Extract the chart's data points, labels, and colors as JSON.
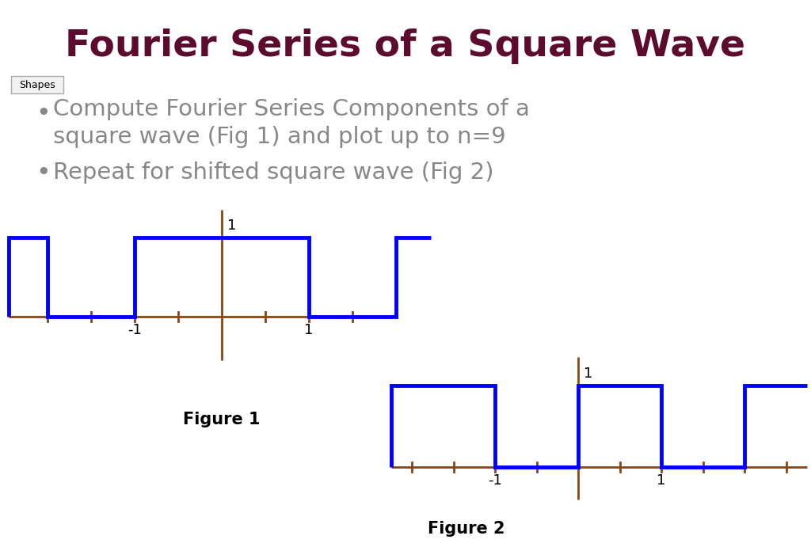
{
  "title": "Fourier Series of a Square Wave",
  "title_color": "#5C0A2E",
  "title_fontsize": 34,
  "bg_color": "#FFFFFF",
  "bullet1_line1": "Compute Fourier Series Components of a",
  "bullet1_line2": "square wave (Fig 1) and plot up to n=9",
  "bullet2": "Repeat for shifted square wave (Fig 2)",
  "bullet_color": "#888888",
  "bullet_fontsize": 21,
  "shapes_label": "Shapes",
  "axis_color": "#8B4513",
  "wave_color": "#0000FF",
  "wave_lw": 3.5,
  "axis_lw": 2.0,
  "fig1_label": "Figure 1",
  "fig2_label": "Figure 2",
  "label_fontsize": 15,
  "tick_label_fontsize": 13
}
